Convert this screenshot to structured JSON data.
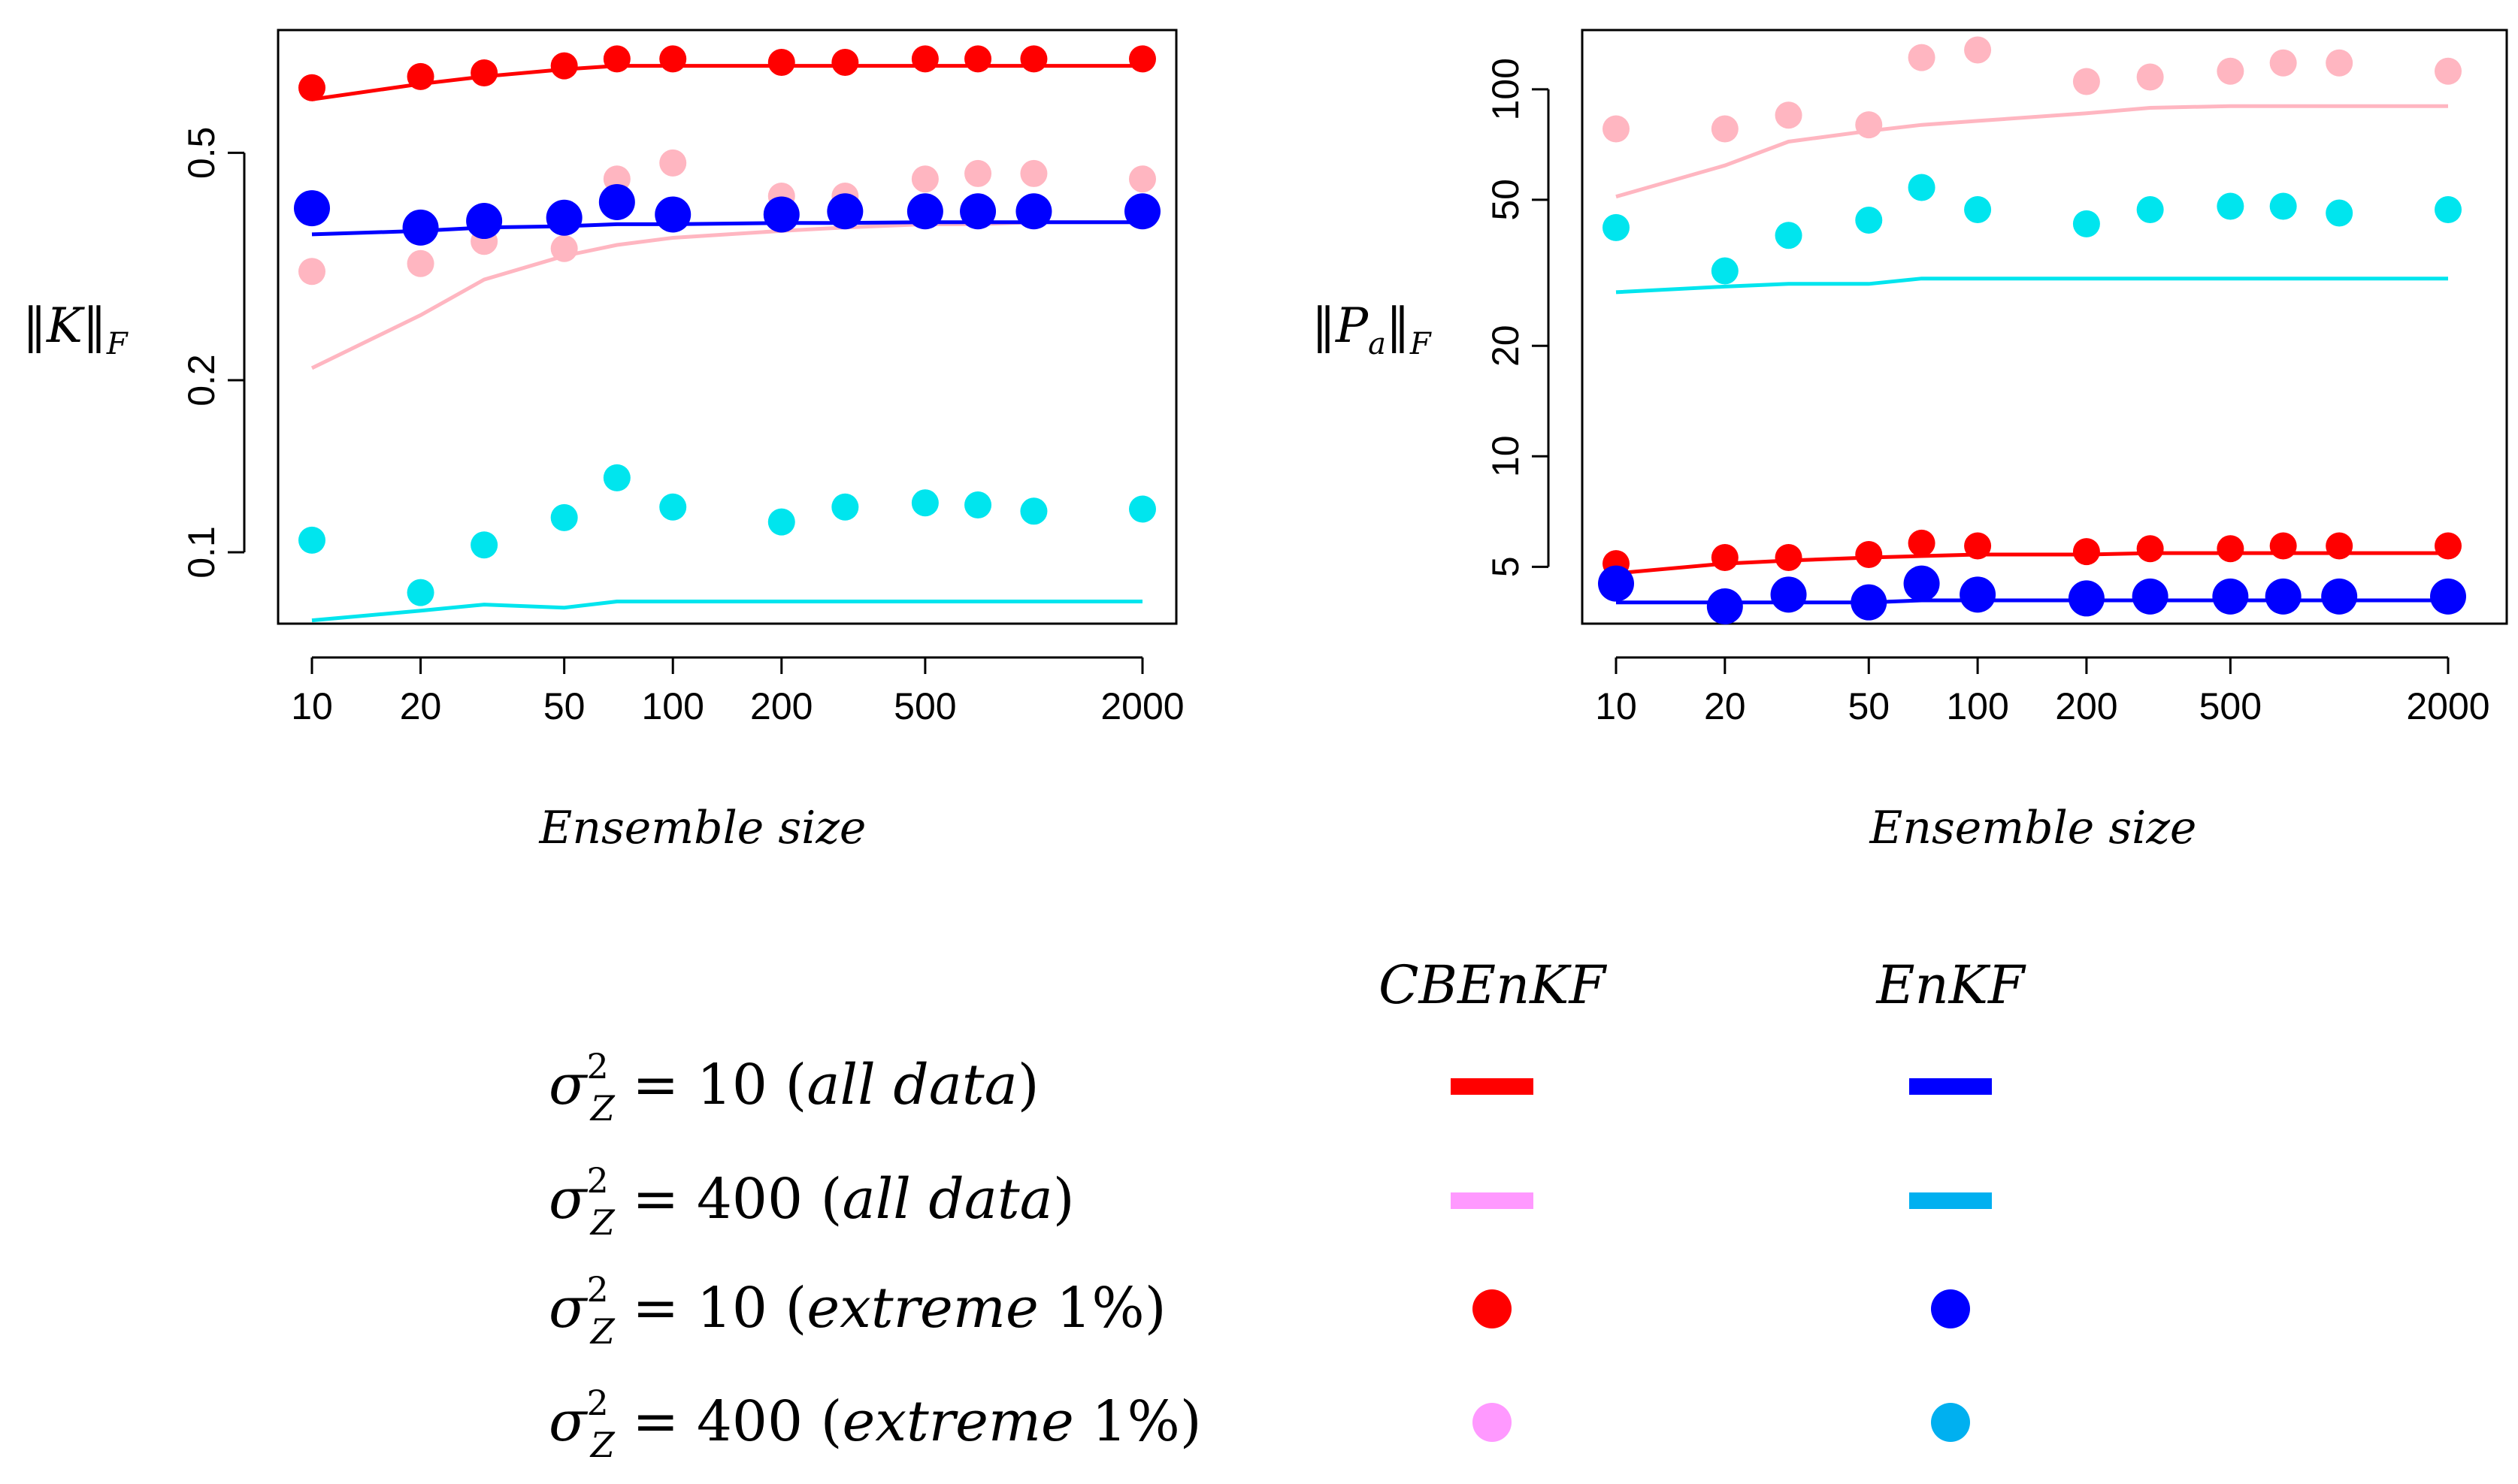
{
  "chart_data": [
    {
      "type": "line+scatter",
      "ylabel_main": "‖K‖",
      "ylabel_sub": "F",
      "xlabel": "Ensemble size",
      "xscale": "log",
      "yscale": "log",
      "xlim": [
        10,
        2000
      ],
      "ylim": [
        0.075,
        0.82
      ],
      "xticks": [
        10,
        20,
        50,
        100,
        200,
        500,
        2000
      ],
      "yticks": [
        0.1,
        0.2,
        0.5
      ],
      "x": [
        10,
        20,
        30,
        50,
        70,
        100,
        200,
        300,
        500,
        700,
        1000,
        2000
      ],
      "series": [
        {
          "name": "CBEnKF σ²=10 (all data)",
          "kind": "line",
          "color": "#ff0000",
          "values": [
            0.62,
            0.66,
            0.68,
            0.7,
            0.71,
            0.71,
            0.71,
            0.71,
            0.71,
            0.71,
            0.71,
            0.71
          ]
        },
        {
          "name": "CBEnKF σ²=400 (all data)",
          "kind": "line",
          "color": "#ffb6c1",
          "values": [
            0.21,
            0.26,
            0.3,
            0.33,
            0.345,
            0.355,
            0.365,
            0.37,
            0.375,
            0.375,
            0.378,
            0.378
          ]
        },
        {
          "name": "EnKF σ²=10 (all data)",
          "kind": "line",
          "color": "#0000ff",
          "values": [
            0.36,
            0.365,
            0.37,
            0.372,
            0.375,
            0.375,
            0.377,
            0.377,
            0.378,
            0.378,
            0.378,
            0.378
          ]
        },
        {
          "name": "EnKF σ²=400 (all data)",
          "kind": "line",
          "color": "#00e5ee",
          "values": [
            0.076,
            0.079,
            0.081,
            0.08,
            0.082,
            0.082,
            0.082,
            0.082,
            0.082,
            0.082,
            0.082,
            0.082
          ]
        },
        {
          "name": "CBEnKF σ²=10 (extreme 1%)",
          "kind": "points",
          "color": "#ff0000",
          "values": [
            0.65,
            0.68,
            0.69,
            0.71,
            0.73,
            0.73,
            0.72,
            0.72,
            0.73,
            0.73,
            0.73,
            0.73
          ]
        },
        {
          "name": "CBEnKF σ²=400 (extreme 1%)",
          "kind": "points",
          "color": "#ffb6c1",
          "values": [
            0.31,
            0.32,
            0.35,
            0.34,
            0.45,
            0.48,
            0.42,
            0.42,
            0.45,
            0.46,
            0.46,
            0.45
          ]
        },
        {
          "name": "EnKF σ²=10 (extreme 1%)",
          "kind": "points",
          "color": "#0000ff",
          "values": [
            0.4,
            0.37,
            0.38,
            0.385,
            0.41,
            0.39,
            0.39,
            0.395,
            0.395,
            0.395,
            0.395,
            0.395
          ]
        },
        {
          "name": "EnKF σ²=400 (extreme 1%)",
          "kind": "points",
          "color": "#00e5ee",
          "values": [
            0.105,
            0.085,
            0.103,
            0.115,
            0.135,
            0.12,
            0.113,
            0.12,
            0.122,
            0.121,
            0.118,
            0.119
          ]
        }
      ]
    },
    {
      "type": "line+scatter",
      "ylabel_main": "‖P",
      "ylabel_sub_a": "a",
      "ylabel_main2": "‖",
      "ylabel_sub": "F",
      "xlabel": "Ensemble size",
      "xscale": "log",
      "yscale": "log",
      "xlim": [
        10,
        2000
      ],
      "ylim": [
        3.5,
        145
      ],
      "xticks": [
        10,
        20,
        50,
        100,
        200,
        500,
        2000
      ],
      "yticks": [
        5,
        10,
        20,
        50,
        100
      ],
      "x": [
        10,
        20,
        30,
        50,
        70,
        100,
        200,
        300,
        500,
        700,
        1000,
        2000
      ],
      "series": [
        {
          "name": "CBEnKF σ²=10 (all data)",
          "kind": "line",
          "color": "#ff0000",
          "values": [
            4.8,
            5.1,
            5.2,
            5.3,
            5.35,
            5.4,
            5.4,
            5.45,
            5.45,
            5.45,
            5.45,
            5.45
          ]
        },
        {
          "name": "CBEnKF σ²=400 (all data)",
          "kind": "line",
          "color": "#ffb6c1",
          "values": [
            51,
            62,
            72,
            77,
            80,
            82,
            86,
            89,
            90,
            90,
            90,
            90
          ]
        },
        {
          "name": "EnKF σ²=10 (all data)",
          "kind": "line",
          "color": "#0000ff",
          "values": [
            4.0,
            4.0,
            4.0,
            4.0,
            4.05,
            4.05,
            4.05,
            4.05,
            4.05,
            4.05,
            4.05,
            4.05
          ]
        },
        {
          "name": "EnKF σ²=400 (all data)",
          "kind": "line",
          "color": "#00e5ee",
          "values": [
            28,
            29,
            29.5,
            29.5,
            30.5,
            30.5,
            30.5,
            30.5,
            30.5,
            30.5,
            30.5,
            30.5
          ]
        },
        {
          "name": "CBEnKF σ²=10 (extreme 1%)",
          "kind": "points",
          "color": "#ff0000",
          "values": [
            5.1,
            5.3,
            5.3,
            5.4,
            5.8,
            5.7,
            5.5,
            5.6,
            5.6,
            5.7,
            5.7,
            5.7
          ]
        },
        {
          "name": "CBEnKF σ²=400 (extreme 1%)",
          "kind": "points",
          "color": "#ffb6c1",
          "values": [
            78,
            78,
            85,
            80,
            122,
            128,
            105,
            108,
            112,
            118,
            118,
            112
          ]
        },
        {
          "name": "EnKF σ²=10 (extreme 1%)",
          "kind": "points",
          "color": "#0000ff",
          "values": [
            4.5,
            3.9,
            4.2,
            4.0,
            4.5,
            4.2,
            4.1,
            4.15,
            4.15,
            4.15,
            4.15,
            4.15
          ]
        },
        {
          "name": "EnKF σ²=400 (extreme 1%)",
          "kind": "points",
          "color": "#00e5ee",
          "values": [
            42,
            32,
            40,
            44,
            54,
            47,
            43,
            47,
            48,
            48,
            46,
            47
          ]
        }
      ]
    }
  ],
  "legend": {
    "col_headers": [
      "CBEnKF",
      "EnKF"
    ],
    "rows": [
      {
        "lhs": "σ",
        "sup": "2",
        "sub": "Z",
        "rhs": " = 10 (",
        "desc": "all data",
        "close": ")",
        "cbenkf": {
          "kind": "line",
          "color": "#ff0000"
        },
        "enkf": {
          "kind": "line",
          "color": "#0000ff"
        }
      },
      {
        "lhs": "σ",
        "sup": "2",
        "sub": "Z",
        "rhs": " = 400 (",
        "desc": "all data",
        "close": ")",
        "cbenkf": {
          "kind": "line",
          "color": "#ff99ff"
        },
        "enkf": {
          "kind": "line",
          "color": "#00b0f0"
        }
      },
      {
        "lhs": "σ",
        "sup": "2",
        "sub": "Z",
        "rhs": " = 10 (",
        "desc": "extreme",
        "pct": " 1%",
        "close": ")",
        "cbenkf": {
          "kind": "point",
          "color": "#ff0000"
        },
        "enkf": {
          "kind": "point",
          "color": "#0000ff"
        }
      },
      {
        "lhs": "σ",
        "sup": "2",
        "sub": "Z",
        "rhs": " = 400 (",
        "desc": "extreme",
        "pct": " 1%",
        "close": ")",
        "cbenkf": {
          "kind": "point",
          "color": "#ff99ff"
        },
        "enkf": {
          "kind": "point",
          "color": "#00b0f0"
        }
      }
    ]
  }
}
